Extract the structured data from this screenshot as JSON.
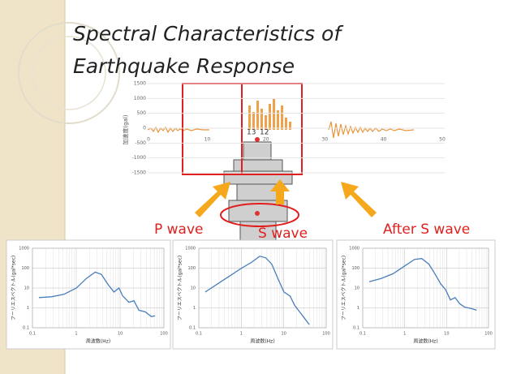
{
  "title": "Spectral Characteristics of Earthquake Response",
  "waveform": {
    "y_label": "加速度(gal)",
    "yticks": [
      "1500",
      "1000",
      "500",
      "0",
      "-500",
      "-1000",
      "-1500"
    ],
    "xticks": [
      "0",
      "10",
      "20",
      "30",
      "40",
      "50"
    ],
    "annotations": [
      "13",
      "12"
    ]
  },
  "labels": {
    "p_wave": "P wave",
    "s_wave": "S wave",
    "after_s_wave": "After S wave"
  },
  "spectra": [
    {
      "y_label": "フーリエスペクトル(gal*sec)",
      "x_label": "周波数(Hz)",
      "yticks": [
        "1000",
        "100",
        "10",
        "1",
        "0.1"
      ],
      "xticks": [
        "0.1",
        "1",
        "10",
        "100"
      ]
    },
    {
      "y_label": "フーリエスペクトル(gal*sec)",
      "x_label": "周波数(Hz)",
      "yticks": [
        "1000",
        "100",
        "10",
        "1",
        "0.1"
      ],
      "xticks": [
        "0.1",
        "1",
        "10",
        "100"
      ]
    },
    {
      "y_label": "フーリエスペクトル(gal*sec)",
      "x_label": "周波数(Hz)",
      "yticks": [
        "1000",
        "100",
        "10",
        "1",
        "0.1"
      ],
      "xticks": [
        "0.1",
        "1",
        "10",
        "100"
      ]
    }
  ]
}
